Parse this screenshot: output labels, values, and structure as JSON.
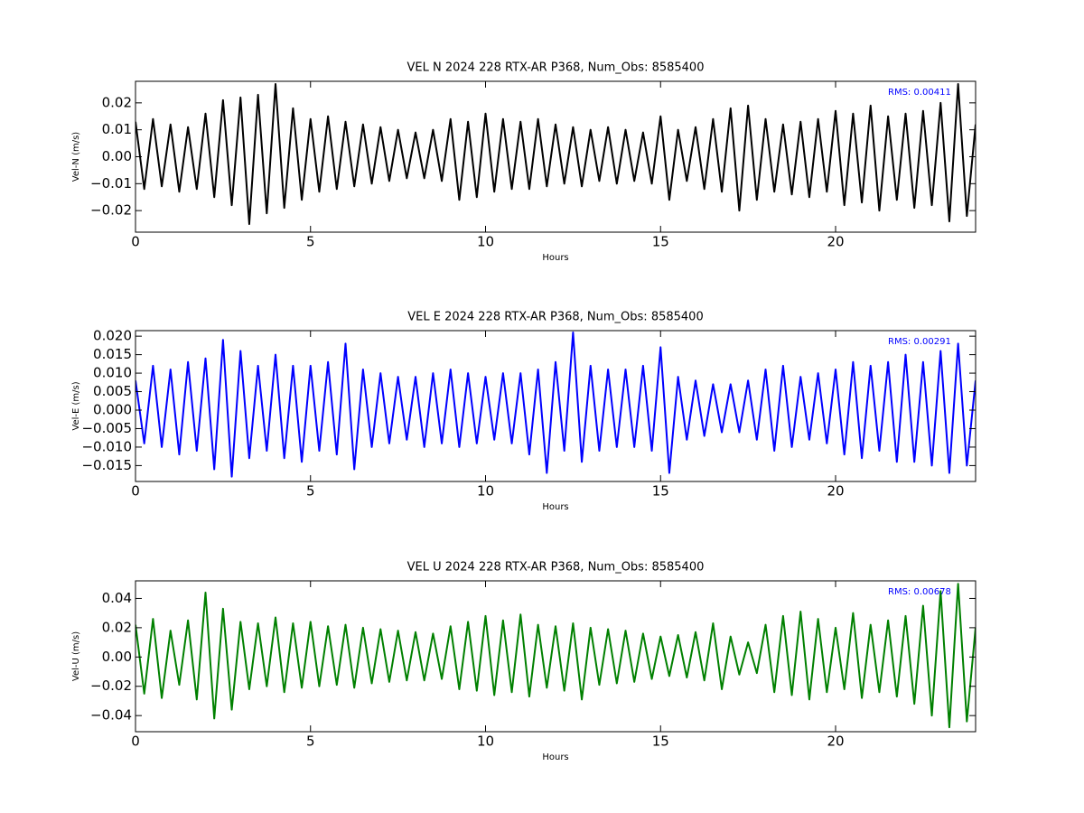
{
  "chart_data": [
    {
      "type": "line",
      "title": "VEL N 2024 228 RTX-AR  P368, Num_Obs: 8585400",
      "xlabel": "Hours",
      "ylabel": "Vel-N (m/s)",
      "annotation": "RMS:  0.00411",
      "annotation_color": "#0000ff",
      "color": "#000000",
      "xlim": [
        0,
        24
      ],
      "xticks": [
        0,
        5,
        10,
        15,
        20
      ],
      "ylim": [
        -0.028,
        0.028
      ],
      "yticks": [
        {
          "value": -0.02,
          "label": "−0.02"
        },
        {
          "value": -0.01,
          "label": "−0.01"
        },
        {
          "value": 0,
          "label": "0.00"
        },
        0.01,
        0.02
      ],
      "x": [
        0,
        0.25,
        0.5,
        0.75,
        1,
        1.25,
        1.5,
        1.75,
        2,
        2.25,
        2.5,
        2.75,
        3,
        3.25,
        3.5,
        3.75,
        4,
        4.25,
        4.5,
        4.75,
        5,
        5.25,
        5.5,
        5.75,
        6,
        6.25,
        6.5,
        6.75,
        7,
        7.25,
        7.5,
        7.75,
        8,
        8.25,
        8.5,
        8.75,
        9,
        9.25,
        9.5,
        9.75,
        10,
        10.25,
        10.5,
        10.75,
        11,
        11.25,
        11.5,
        11.75,
        12,
        12.25,
        12.5,
        12.75,
        13,
        13.25,
        13.5,
        13.75,
        14,
        14.25,
        14.5,
        14.75,
        15,
        15.25,
        15.5,
        15.75,
        16,
        16.25,
        16.5,
        16.75,
        17,
        17.25,
        17.5,
        17.75,
        18,
        18.25,
        18.5,
        18.75,
        19,
        19.25,
        19.5,
        19.75,
        20,
        20.25,
        20.5,
        20.75,
        21,
        21.25,
        21.5,
        21.75,
        22,
        22.25,
        22.5,
        22.75,
        23,
        23.25,
        23.5,
        23.75,
        24
      ],
      "values": [
        0.013,
        -0.012,
        0.014,
        -0.011,
        0.012,
        -0.013,
        0.011,
        -0.012,
        0.016,
        -0.015,
        0.021,
        -0.018,
        0.022,
        -0.025,
        0.023,
        -0.021,
        0.027,
        -0.019,
        0.018,
        -0.016,
        0.014,
        -0.013,
        0.015,
        -0.012,
        0.013,
        -0.011,
        0.012,
        -0.01,
        0.011,
        -0.009,
        0.01,
        -0.008,
        0.009,
        -0.008,
        0.01,
        -0.009,
        0.014,
        -0.016,
        0.013,
        -0.015,
        0.016,
        -0.013,
        0.014,
        -0.012,
        0.013,
        -0.012,
        0.014,
        -0.011,
        0.012,
        -0.01,
        0.011,
        -0.011,
        0.01,
        -0.009,
        0.011,
        -0.01,
        0.01,
        -0.009,
        0.009,
        -0.01,
        0.015,
        -0.016,
        0.01,
        -0.009,
        0.011,
        -0.012,
        0.014,
        -0.013,
        0.018,
        -0.02,
        0.019,
        -0.016,
        0.014,
        -0.013,
        0.012,
        -0.014,
        0.013,
        -0.015,
        0.014,
        -0.013,
        0.017,
        -0.018,
        0.016,
        -0.017,
        0.019,
        -0.02,
        0.015,
        -0.016,
        0.016,
        -0.019,
        0.017,
        -0.018,
        0.02,
        -0.024,
        0.027,
        -0.022,
        0.012
      ]
    },
    {
      "type": "line",
      "title": "VEL E 2024 228 RTX-AR  P368, Num_Obs: 8585400",
      "xlabel": "Hours",
      "ylabel": "Vel-E (m/s)",
      "annotation": "RMS:  0.00291",
      "annotation_color": "#0000ff",
      "color": "#0000ff",
      "xlim": [
        0,
        24
      ],
      "xticks": [
        0,
        5,
        10,
        15,
        20
      ],
      "ylim": [
        -0.0193,
        0.0215
      ],
      "yticks": [
        {
          "value": -0.015,
          "label": "−0.015"
        },
        {
          "value": -0.01,
          "label": "−0.010"
        },
        {
          "value": -0.005,
          "label": "−0.005"
        },
        {
          "value": 0,
          "label": "0.000"
        },
        {
          "value": 0.005,
          "label": "0.005"
        },
        {
          "value": 0.01,
          "label": "0.010"
        },
        {
          "value": 0.015,
          "label": "0.015"
        },
        {
          "value": 0.02,
          "label": "0.020"
        }
      ],
      "x": [
        0,
        0.25,
        0.5,
        0.75,
        1,
        1.25,
        1.5,
        1.75,
        2,
        2.25,
        2.5,
        2.75,
        3,
        3.25,
        3.5,
        3.75,
        4,
        4.25,
        4.5,
        4.75,
        5,
        5.25,
        5.5,
        5.75,
        6,
        6.25,
        6.5,
        6.75,
        7,
        7.25,
        7.5,
        7.75,
        8,
        8.25,
        8.5,
        8.75,
        9,
        9.25,
        9.5,
        9.75,
        10,
        10.25,
        10.5,
        10.75,
        11,
        11.25,
        11.5,
        11.75,
        12,
        12.25,
        12.5,
        12.75,
        13,
        13.25,
        13.5,
        13.75,
        14,
        14.25,
        14.5,
        14.75,
        15,
        15.25,
        15.5,
        15.75,
        16,
        16.25,
        16.5,
        16.75,
        17,
        17.25,
        17.5,
        17.75,
        18,
        18.25,
        18.5,
        18.75,
        19,
        19.25,
        19.5,
        19.75,
        20,
        20.25,
        20.5,
        20.75,
        21,
        21.25,
        21.5,
        21.75,
        22,
        22.25,
        22.5,
        22.75,
        23,
        23.25,
        23.5,
        23.75,
        24
      ],
      "values": [
        0.008,
        -0.009,
        0.012,
        -0.01,
        0.011,
        -0.012,
        0.013,
        -0.011,
        0.014,
        -0.016,
        0.019,
        -0.018,
        0.016,
        -0.013,
        0.012,
        -0.011,
        0.015,
        -0.013,
        0.012,
        -0.014,
        0.012,
        -0.011,
        0.013,
        -0.012,
        0.018,
        -0.016,
        0.011,
        -0.01,
        0.01,
        -0.009,
        0.009,
        -0.008,
        0.009,
        -0.01,
        0.01,
        -0.009,
        0.011,
        -0.01,
        0.01,
        -0.009,
        0.009,
        -0.008,
        0.01,
        -0.009,
        0.01,
        -0.012,
        0.011,
        -0.017,
        0.013,
        -0.011,
        0.021,
        -0.014,
        0.012,
        -0.011,
        0.011,
        -0.01,
        0.011,
        -0.01,
        0.012,
        -0.011,
        0.017,
        -0.017,
        0.009,
        -0.008,
        0.008,
        -0.007,
        0.007,
        -0.006,
        0.007,
        -0.006,
        0.008,
        -0.008,
        0.011,
        -0.011,
        0.012,
        -0.01,
        0.009,
        -0.008,
        0.01,
        -0.009,
        0.011,
        -0.012,
        0.013,
        -0.013,
        0.012,
        -0.011,
        0.013,
        -0.014,
        0.015,
        -0.014,
        0.013,
        -0.015,
        0.016,
        -0.017,
        0.018,
        -0.015,
        0.008
      ]
    },
    {
      "type": "line",
      "title": "VEL U 2024 228 RTX-AR  P368, Num_Obs: 8585400",
      "xlabel": "Hours",
      "ylabel": "Vel-U (m/s)",
      "annotation": "RMS:  0.00678",
      "annotation_color": "#0000ff",
      "color": "#008000",
      "xlim": [
        0,
        24
      ],
      "xticks": [
        0,
        5,
        10,
        15,
        20
      ],
      "ylim": [
        -0.051,
        0.052
      ],
      "yticks": [
        {
          "value": -0.04,
          "label": "−0.04"
        },
        {
          "value": -0.02,
          "label": "−0.02"
        },
        {
          "value": 0,
          "label": "0.00"
        },
        0.02,
        0.04
      ],
      "x": [
        0,
        0.25,
        0.5,
        0.75,
        1,
        1.25,
        1.5,
        1.75,
        2,
        2.25,
        2.5,
        2.75,
        3,
        3.25,
        3.5,
        3.75,
        4,
        4.25,
        4.5,
        4.75,
        5,
        5.25,
        5.5,
        5.75,
        6,
        6.25,
        6.5,
        6.75,
        7,
        7.25,
        7.5,
        7.75,
        8,
        8.25,
        8.5,
        8.75,
        9,
        9.25,
        9.5,
        9.75,
        10,
        10.25,
        10.5,
        10.75,
        11,
        11.25,
        11.5,
        11.75,
        12,
        12.25,
        12.5,
        12.75,
        13,
        13.25,
        13.5,
        13.75,
        14,
        14.25,
        14.5,
        14.75,
        15,
        15.25,
        15.5,
        15.75,
        16,
        16.25,
        16.5,
        16.75,
        17,
        17.25,
        17.5,
        17.75,
        18,
        18.25,
        18.5,
        18.75,
        19,
        19.25,
        19.5,
        19.75,
        20,
        20.25,
        20.5,
        20.75,
        21,
        21.25,
        21.5,
        21.75,
        22,
        22.25,
        22.5,
        22.75,
        23,
        23.25,
        23.5,
        23.75,
        24
      ],
      "values": [
        0.022,
        -0.025,
        0.026,
        -0.028,
        0.018,
        -0.019,
        0.025,
        -0.029,
        0.044,
        -0.042,
        0.033,
        -0.036,
        0.024,
        -0.022,
        0.023,
        -0.02,
        0.027,
        -0.024,
        0.023,
        -0.021,
        0.024,
        -0.02,
        0.021,
        -0.019,
        0.022,
        -0.021,
        0.02,
        -0.018,
        0.019,
        -0.017,
        0.018,
        -0.016,
        0.017,
        -0.016,
        0.016,
        -0.015,
        0.021,
        -0.022,
        0.024,
        -0.023,
        0.028,
        -0.026,
        0.025,
        -0.024,
        0.029,
        -0.027,
        0.022,
        -0.021,
        0.021,
        -0.023,
        0.023,
        -0.029,
        0.02,
        -0.019,
        0.019,
        -0.018,
        0.018,
        -0.017,
        0.016,
        -0.015,
        0.014,
        -0.013,
        0.015,
        -0.014,
        0.017,
        -0.016,
        0.023,
        -0.022,
        0.014,
        -0.012,
        0.01,
        -0.011,
        0.022,
        -0.024,
        0.028,
        -0.026,
        0.031,
        -0.029,
        0.026,
        -0.024,
        0.02,
        -0.022,
        0.03,
        -0.028,
        0.022,
        -0.024,
        0.025,
        -0.027,
        0.028,
        -0.032,
        0.035,
        -0.04,
        0.045,
        -0.048,
        0.05,
        -0.044,
        0.02
      ]
    }
  ]
}
